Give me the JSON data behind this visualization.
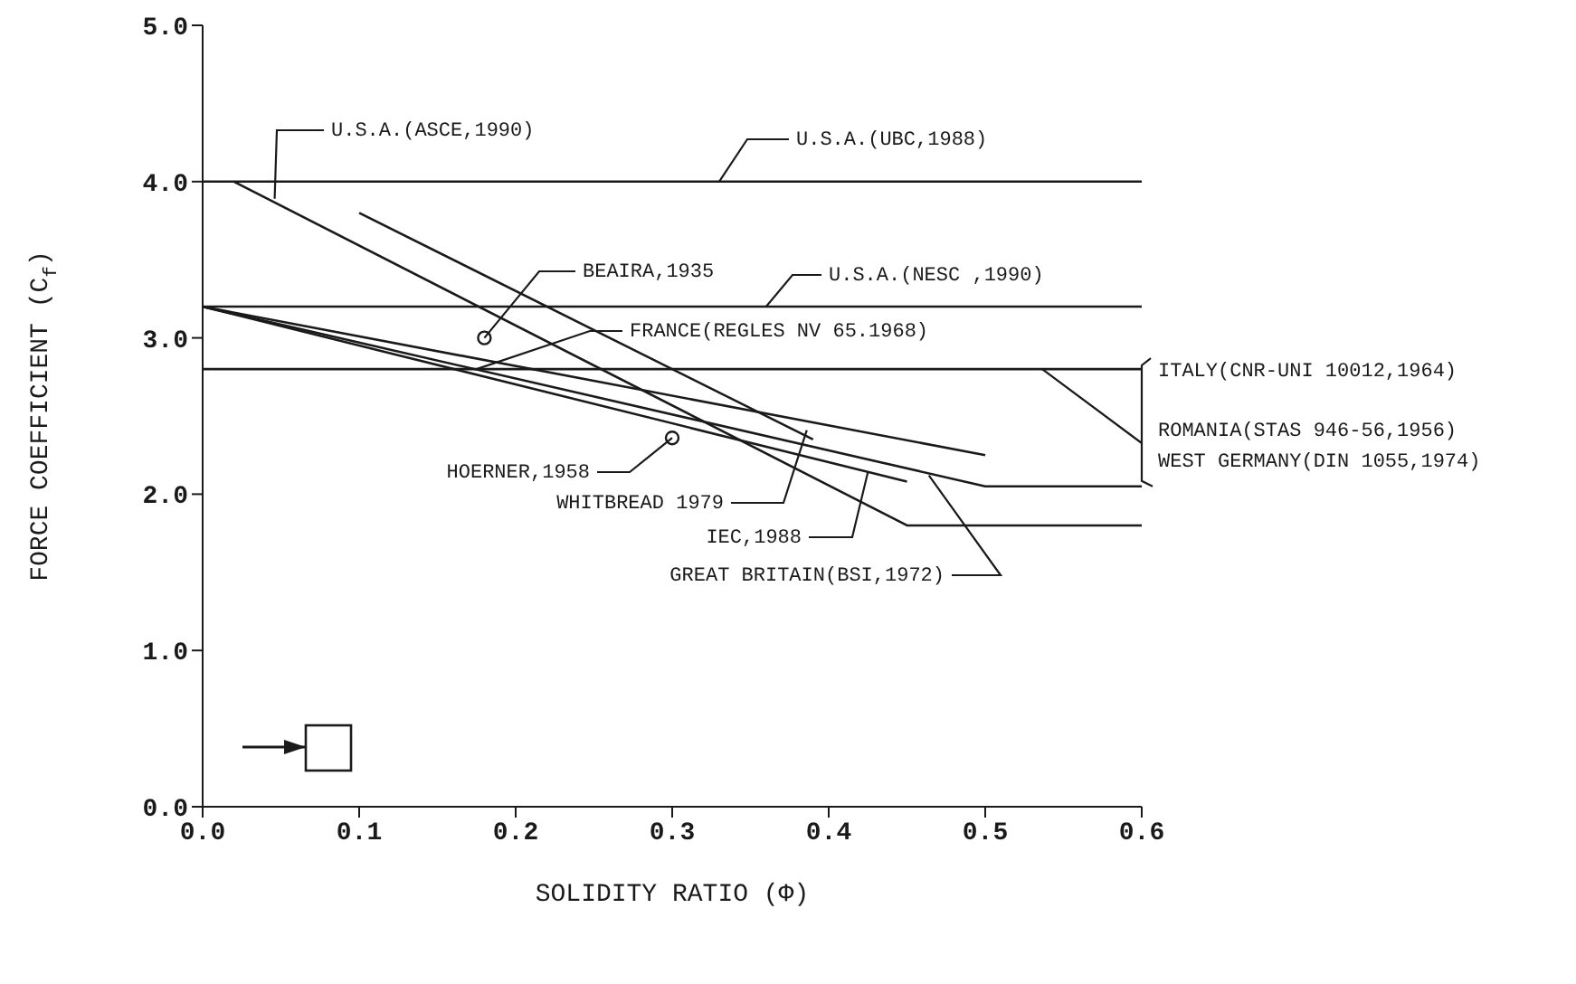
{
  "chart_data": {
    "type": "line",
    "xlabel": "SOLIDITY RATIO (Φ)",
    "ylabel": "FORCE COEFFICIENT (C$_{f}$)",
    "xlim": [
      0,
      0.6
    ],
    "xticks": [
      {
        "value": 0,
        "label": "0.0"
      },
      {
        "value": 0.1,
        "label": "0.1"
      },
      {
        "value": 0.2,
        "label": "0.2"
      },
      {
        "value": 0.3,
        "label": "0.3"
      },
      {
        "value": 0.4,
        "label": "0.4"
      },
      {
        "value": 0.5,
        "label": "0.5"
      },
      {
        "value": 0.6,
        "label": "0.6"
      }
    ],
    "ylim": [
      0,
      5
    ],
    "yticks": [
      {
        "value": 0,
        "label": "0.0"
      },
      {
        "value": 1,
        "label": "1.0"
      },
      {
        "value": 2,
        "label": "2.0"
      },
      {
        "value": 3,
        "label": "3.0"
      },
      {
        "value": 4,
        "label": "4.0"
      },
      {
        "value": 5,
        "label": "5.0"
      }
    ],
    "grid": false,
    "series": [
      {
        "color": "#1a1a1a",
        "x": [
          0,
          0.6
        ],
        "values": [
          4.0,
          4.0
        ]
      },
      {
        "color": "#1a1a1a",
        "x": [
          0,
          0.6
        ],
        "values": [
          3.2,
          3.2
        ]
      },
      {
        "color": "#1a1a1a",
        "x": [
          0,
          0.6
        ],
        "values": [
          2.8,
          2.8
        ]
      },
      {
        "color": "#1a1a1a",
        "x": [
          0.02,
          0.45,
          0.6
        ],
        "values": [
          4.0,
          1.8,
          1.8
        ]
      },
      {
        "color": "#1a1a1a",
        "x": [
          0.1,
          0.39
        ],
        "values": [
          3.8,
          2.35
        ]
      },
      {
        "color": "#1a1a1a",
        "x": [
          0,
          0.5
        ],
        "values": [
          3.2,
          2.25
        ]
      },
      {
        "color": "#1a1a1a",
        "x": [
          0,
          0.5,
          0.6
        ],
        "values": [
          3.2,
          2.05,
          2.05
        ]
      },
      {
        "color": "#1a1a1a",
        "x": [
          0,
          0.45
        ],
        "values": [
          3.2,
          2.08
        ]
      },
      {
        "type": "scatter",
        "marker": "circle",
        "color": "#1a1a1a",
        "x": [
          0.18,
          0.3
        ],
        "values": [
          3.0,
          2.36
        ]
      }
    ],
    "annotations": [
      {
        "text": "U.S.A.(ASCE,1990)",
        "x": 0.046,
        "y": 3.89
      },
      {
        "text": "U.S.A.(UBC,1988)",
        "x": 0.33,
        "y": 4.0
      },
      {
        "text": "BEAIRA,1935",
        "x": 0.18,
        "y": 3.0
      },
      {
        "text": "U.S.A.(NESC ,1990)",
        "x": 0.36,
        "y": 3.2
      },
      {
        "text": "FRANCE(REGLES NV 65.1968)",
        "x": 0.175,
        "y": 2.8
      },
      "ITALY(CNR-UNI 10012,1964)",
      {
        "text": "ROMANIA(STAS 946-56,1956)",
        "x": 0.6,
        "y": 2.05
      },
      {
        "text": "WEST GERMANY(DIN 1055,1974)",
        "x": 0.6,
        "y": 2.05
      },
      {
        "text": "HOERNER,1958",
        "x": 0.3,
        "y": 2.36
      },
      {
        "text": "WHITBREAD 1979",
        "x": 0.386,
        "y": 2.41
      },
      {
        "text": "IEC,1988",
        "x": 0.425,
        "y": 2.14
      },
      {
        "text": "GREAT BRITAIN(BSI,1972)",
        "x": 0.464,
        "y": 2.12
      }
    ]
  }
}
